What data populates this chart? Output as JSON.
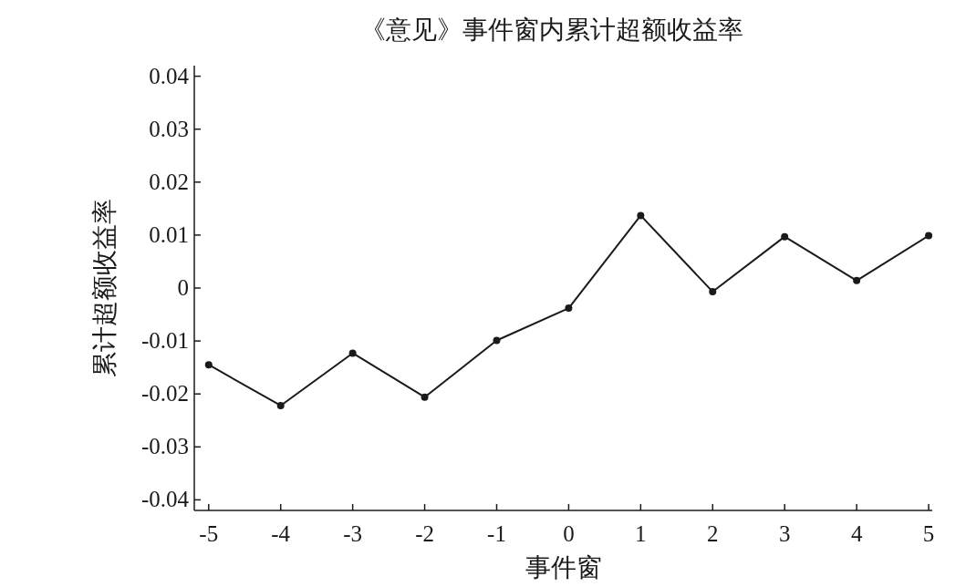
{
  "chart_data": {
    "type": "line",
    "title": "《意见》事件窗内累计超额收益率",
    "xlabel": "事件窗",
    "ylabel": "累计超额收益率",
    "x": [
      -5,
      -4,
      -3,
      -2,
      -1,
      0,
      1,
      2,
      3,
      4,
      5
    ],
    "series": [
      {
        "color": "#1a1a1a",
        "values": [
          -0.0145,
          -0.0222,
          -0.0123,
          -0.0206,
          -0.0099,
          -0.0038,
          0.0137,
          -0.0007,
          0.0097,
          0.0014,
          0.0099
        ]
      }
    ],
    "xlim": [
      -5.2,
      5.05
    ],
    "ylim": [
      -0.042,
      0.042
    ],
    "xticks": [
      -5,
      -4,
      -3,
      -2,
      -1,
      0,
      1,
      2,
      3,
      4,
      5
    ],
    "yticks": [
      -0.04,
      -0.03,
      -0.02,
      -0.01,
      0,
      0.01,
      0.02,
      0.03,
      0.04
    ],
    "grid": false,
    "marker": "circle",
    "line_style": "solid"
  }
}
